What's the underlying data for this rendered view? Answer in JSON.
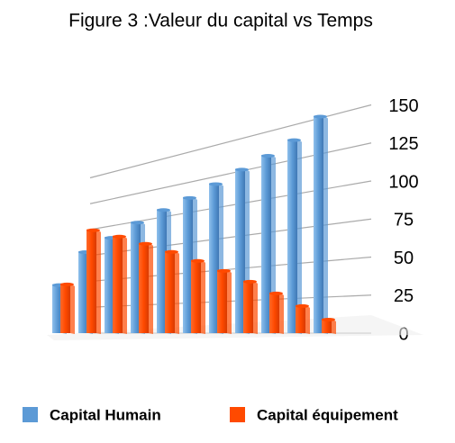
{
  "chart_data": {
    "type": "bar",
    "title": "Figure 3 :Valeur du capital vs Temps",
    "categories": [
      null,
      null,
      null,
      null,
      null,
      null,
      null,
      null,
      null,
      null,
      null
    ],
    "series": [
      {
        "name": "Capital Humain",
        "color": "#5c9ad6",
        "values": [
          50,
          80,
          90,
          100,
          107,
          113,
          120,
          127,
          133,
          140,
          152
        ]
      },
      {
        "name": "Capital équipement",
        "color": "#ff4a00",
        "values": [
          50,
          100,
          90,
          80,
          70,
          60,
          50,
          40,
          30,
          20,
          10
        ]
      }
    ],
    "ylim": [
      0,
      150
    ],
    "yticks": [
      0,
      25,
      50,
      75,
      100,
      125,
      150
    ],
    "grid": true
  }
}
